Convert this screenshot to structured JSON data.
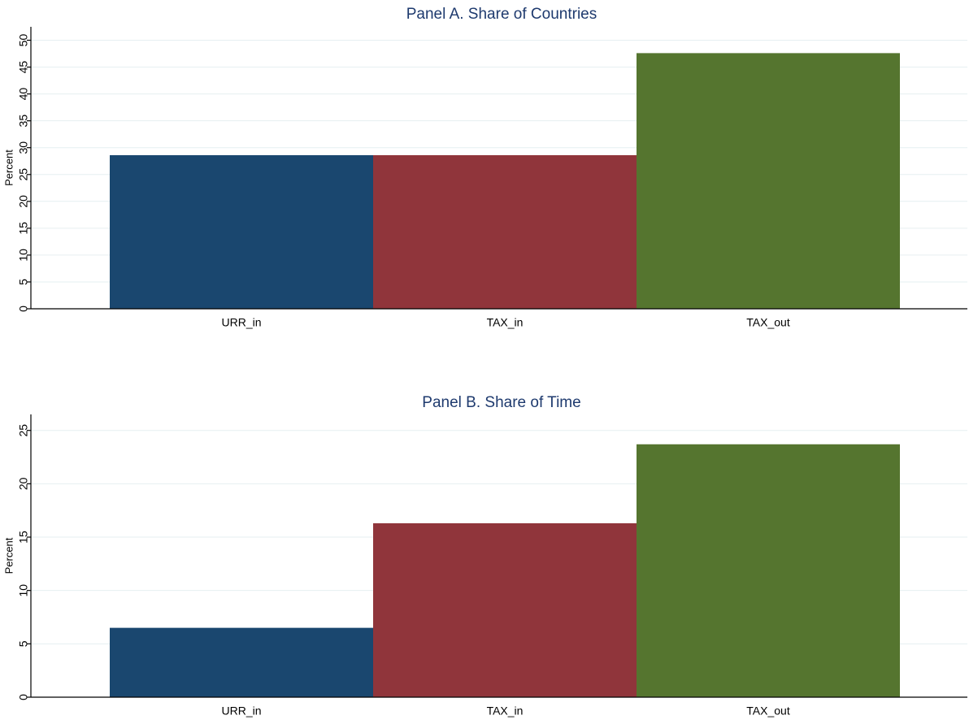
{
  "chart_data": [
    {
      "type": "bar",
      "title": "Panel A. Share of Countries",
      "y_label": "Percent",
      "categories": [
        "URR_in",
        "TAX_in",
        "TAX_out"
      ],
      "values": [
        28.6,
        28.6,
        47.6
      ],
      "colors": [
        "#1a476f",
        "#90353b",
        "#55752f"
      ],
      "ylim": [
        0,
        52.5
      ],
      "yticks": [
        0,
        5,
        10,
        15,
        20,
        25,
        30,
        35,
        40,
        45,
        50
      ],
      "grid": true
    },
    {
      "type": "bar",
      "title": "Panel B. Share of Time",
      "y_label": "Percent",
      "categories": [
        "URR_in",
        "TAX_in",
        "TAX_out"
      ],
      "values": [
        6.5,
        16.3,
        23.7
      ],
      "colors": [
        "#1a476f",
        "#90353b",
        "#55752f"
      ],
      "ylim": [
        0,
        26.5
      ],
      "yticks": [
        0,
        5,
        10,
        15,
        20,
        25
      ],
      "grid": true
    }
  ]
}
